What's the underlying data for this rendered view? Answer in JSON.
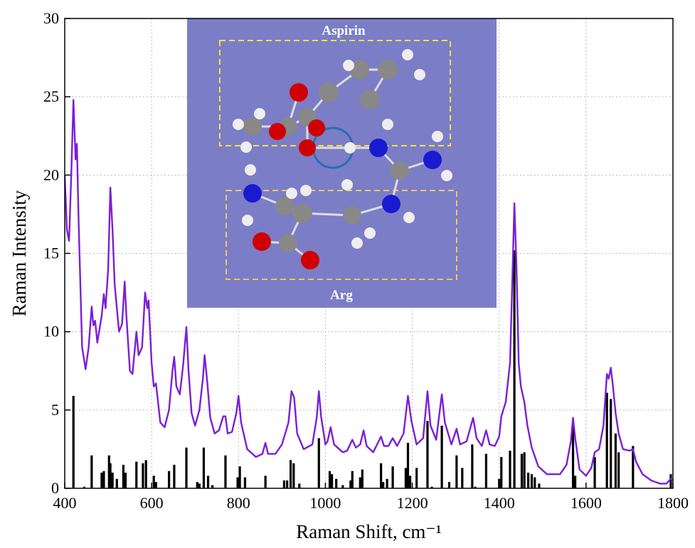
{
  "chart_data": {
    "type": "line",
    "xlabel": "Raman Shift, cm⁻¹",
    "ylabel": "Raman Intensity",
    "xlim": [
      400,
      1800
    ],
    "xticks": [
      400,
      600,
      800,
      1000,
      1200,
      1400,
      1600,
      1800
    ],
    "ylim": [
      0,
      30
    ],
    "yticks": [
      0,
      5,
      10,
      15,
      20,
      25,
      30
    ],
    "grid": true,
    "annotations": [
      "Aspirin",
      "Arg"
    ],
    "series": [
      {
        "type": "bar",
        "color": "#000000",
        "x": [
          420,
          445,
          462,
          485,
          490,
          502,
          505,
          510,
          520,
          535,
          540,
          565,
          580,
          587,
          605,
          610,
          640,
          652,
          680,
          705,
          710,
          720,
          730,
          740,
          770,
          798,
          803,
          815,
          862,
          905,
          912,
          920,
          927,
          940,
          985,
          1010,
          1015,
          1025,
          1040,
          1058,
          1062,
          1080,
          1085,
          1128,
          1133,
          1142,
          1155,
          1185,
          1190,
          1195,
          1210,
          1235,
          1245,
          1268,
          1285,
          1302,
          1315,
          1338,
          1345,
          1370,
          1400,
          1405,
          1425,
          1435,
          1452,
          1458,
          1467,
          1475,
          1482,
          1492,
          1570,
          1575,
          1620,
          1648,
          1657,
          1668,
          1675,
          1708,
          1795
        ],
        "values": [
          5.9,
          0.1,
          2.1,
          1.0,
          1.1,
          2.1,
          1.6,
          1.0,
          0.6,
          1.5,
          1.0,
          1.7,
          1.6,
          1.8,
          0.8,
          0.4,
          1.1,
          1.5,
          2.6,
          0.4,
          0.3,
          2.6,
          0.8,
          0.2,
          2.1,
          0.7,
          1.4,
          0.7,
          0.8,
          0.5,
          0.5,
          1.8,
          1.6,
          0.3,
          3.2,
          1.1,
          0.9,
          0.6,
          0.2,
          0.5,
          1.1,
          0.7,
          1.2,
          1.6,
          0.4,
          0.6,
          1.4,
          1.3,
          2.9,
          0.8,
          1.3,
          4.3,
          0.1,
          4.0,
          0.4,
          2.1,
          1.3,
          2.8,
          0.1,
          2.2,
          0.6,
          2.0,
          2.4,
          15.2,
          2.2,
          2.3,
          1.0,
          0.9,
          0.7,
          0.3,
          4.1,
          0.8,
          2.0,
          6.1,
          5.7,
          3.5,
          2.3,
          2.7,
          0.9
        ]
      },
      {
        "type": "line",
        "color": "#7a1fd6",
        "x": [
          400,
          405,
          410,
          415,
          420,
          425,
          428,
          432,
          440,
          448,
          455,
          462,
          466,
          470,
          475,
          485,
          490,
          494,
          500,
          505,
          510,
          515,
          525,
          532,
          538,
          542,
          550,
          556,
          565,
          570,
          578,
          585,
          590,
          593,
          600,
          605,
          610,
          620,
          630,
          640,
          648,
          652,
          657,
          665,
          673,
          680,
          685,
          692,
          700,
          710,
          718,
          722,
          728,
          735,
          745,
          755,
          765,
          770,
          775,
          785,
          795,
          800,
          806,
          820,
          840,
          855,
          862,
          868,
          885,
          900,
          915,
          922,
          928,
          935,
          950,
          970,
          980,
          985,
          990,
          1000,
          1005,
          1012,
          1020,
          1040,
          1050,
          1062,
          1070,
          1080,
          1088,
          1095,
          1110,
          1128,
          1135,
          1145,
          1155,
          1165,
          1180,
          1190,
          1198,
          1210,
          1225,
          1235,
          1242,
          1255,
          1268,
          1275,
          1290,
          1302,
          1310,
          1325,
          1340,
          1348,
          1360,
          1370,
          1378,
          1390,
          1400,
          1405,
          1415,
          1425,
          1430,
          1435,
          1440,
          1445,
          1450,
          1458,
          1465,
          1475,
          1490,
          1510,
          1540,
          1555,
          1565,
          1570,
          1575,
          1585,
          1600,
          1612,
          1620,
          1630,
          1640,
          1648,
          1652,
          1657,
          1662,
          1668,
          1675,
          1685,
          1700,
          1708,
          1715,
          1730,
          1750,
          1770,
          1785,
          1795,
          1800
        ],
        "values": [
          20,
          16.5,
          15.8,
          20,
          24.8,
          21,
          22,
          17,
          9,
          7.6,
          9,
          11.6,
          10.4,
          10.7,
          9.3,
          11,
          12.4,
          11.5,
          14,
          19.2,
          16.5,
          13,
          10,
          10.5,
          13.2,
          11,
          7.5,
          7.3,
          10,
          8.5,
          9,
          12.5,
          11.5,
          12,
          8,
          6.5,
          6.7,
          4.2,
          3.9,
          5,
          7.5,
          8.4,
          6.5,
          6,
          8,
          10.3,
          7.5,
          4.8,
          4,
          5,
          7,
          8.5,
          6.8,
          4.5,
          3.5,
          3.7,
          4.6,
          4.6,
          3.5,
          3.6,
          4.8,
          5.9,
          4.2,
          2.5,
          2.0,
          2.2,
          2.9,
          2.2,
          2.2,
          2.8,
          4.2,
          6.2,
          5.8,
          3.5,
          2.5,
          2.8,
          4.5,
          6.2,
          4.6,
          2.8,
          3.0,
          3.9,
          2.8,
          2.3,
          2.4,
          3.1,
          2.6,
          2.8,
          3.7,
          2.7,
          2.3,
          3.3,
          2.7,
          2.7,
          3.2,
          2.7,
          3.5,
          5.9,
          4.3,
          2.8,
          3.2,
          6.2,
          4.0,
          3.1,
          6.0,
          4.2,
          2.8,
          3.8,
          2.8,
          3.0,
          4.5,
          3.2,
          2.7,
          3.7,
          2.8,
          2.7,
          3.3,
          4.6,
          5.5,
          8,
          13,
          18.2,
          14,
          8,
          6.5,
          5.5,
          4.0,
          2.6,
          1.4,
          0.9,
          0.9,
          1.5,
          3,
          4.5,
          3.2,
          1.2,
          0.8,
          1.3,
          2.3,
          2.5,
          4,
          7.3,
          7.0,
          7.7,
          6.5,
          4.8,
          3.5,
          2.5,
          2.4,
          2.5,
          1.7,
          0.9,
          0.5,
          0.3,
          0.3,
          0.6,
          0.5
        ]
      }
    ]
  }
}
